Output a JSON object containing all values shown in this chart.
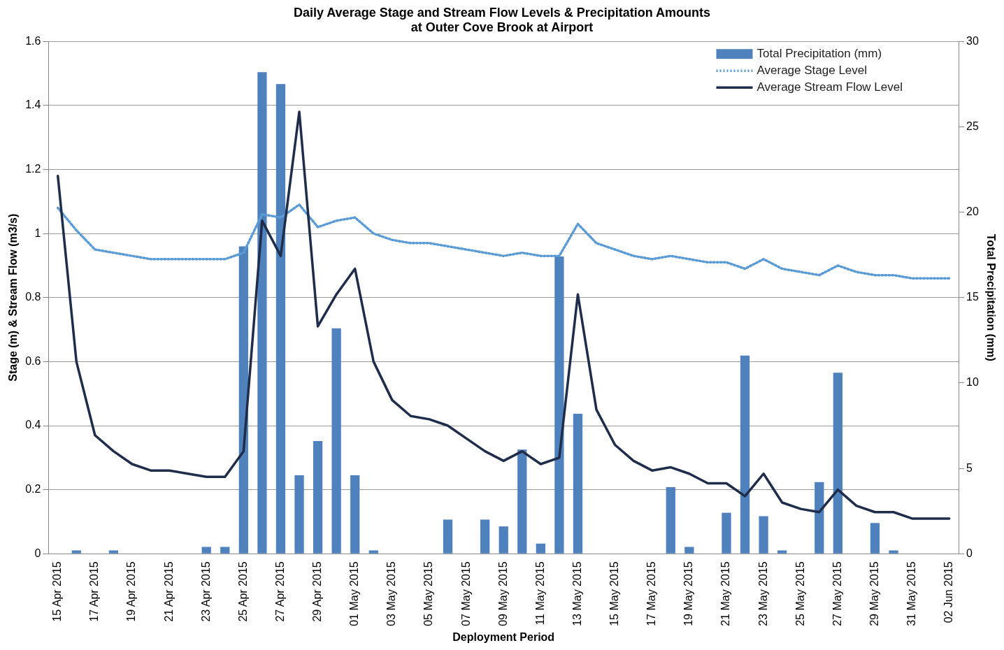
{
  "chart_data": {
    "type": "bar",
    "title": "Daily Average Stage and Stream Flow Levels & Precipitation Amounts\nat Outer Cove Brook at Airport",
    "xlabel": "Deployment Period",
    "ylabel": "Stage (m) & Stream Flow (m3/s)",
    "y2label": "Total Precipitation (mm)",
    "categories": [
      "15 Apr 2015",
      null,
      "17 Apr 2015",
      null,
      "19 Apr 2015",
      null,
      "21 Apr 2015",
      null,
      "23 Apr 2015",
      null,
      "25 Apr 2015",
      null,
      "27 Apr 2015",
      null,
      "29 Apr 2015",
      null,
      "01 May 2015",
      null,
      "03 May 2015",
      null,
      "05 May 2015",
      null,
      "07 May 2015",
      null,
      "09 May 2015",
      null,
      "11 May 2015",
      null,
      "13 May 2015",
      null,
      "15 May 2015",
      null,
      "17 May 2015",
      null,
      "19 May 2015",
      null,
      "21 May 2015",
      null,
      "23 May 2015",
      null,
      "25 May 2015",
      null,
      "27 May 2015",
      null,
      "29 May 2015",
      null,
      "31 May 2015",
      null,
      "02 Jun 2015"
    ],
    "series": [
      {
        "name": "Total Precipitation (mm)",
        "axis": "y2",
        "color": "#4f81bd",
        "values": [
          0,
          0.2,
          0,
          0.2,
          0,
          0,
          0,
          0,
          0.4,
          0.4,
          18.0,
          28.2,
          27.5,
          4.6,
          6.6,
          13.2,
          4.6,
          0.2,
          0,
          0,
          0,
          2.0,
          0,
          2.0,
          1.6,
          6.1,
          0.6,
          17.4,
          8.2,
          0,
          0,
          0,
          0,
          3.9,
          0.4,
          0,
          2.4,
          11.6,
          2.2,
          0.2,
          0,
          4.2,
          10.6,
          0,
          1.8,
          0.2,
          0,
          0,
          0
        ]
      },
      {
        "name": "Average Stage Level",
        "type": "line",
        "line_style": "dotted",
        "color": "#5b9bd5",
        "values": [
          1.08,
          1.01,
          0.95,
          0.94,
          0.93,
          0.92,
          0.92,
          0.92,
          0.92,
          0.92,
          0.94,
          1.06,
          1.05,
          1.09,
          1.02,
          1.04,
          1.05,
          1.0,
          0.98,
          0.97,
          0.97,
          0.96,
          0.95,
          0.94,
          0.93,
          0.94,
          0.93,
          0.93,
          1.03,
          0.97,
          0.95,
          0.93,
          0.92,
          0.93,
          0.92,
          0.91,
          0.91,
          0.89,
          0.92,
          0.89,
          0.88,
          0.87,
          0.9,
          0.88,
          0.87,
          0.87,
          0.86,
          0.86,
          0.86
        ]
      },
      {
        "name": "Average Stream Flow Level",
        "type": "line",
        "line_style": "solid",
        "color": "#1f2d4a",
        "values": [
          1.18,
          0.6,
          0.37,
          0.32,
          0.28,
          0.26,
          0.26,
          0.25,
          0.24,
          0.24,
          0.32,
          1.04,
          0.93,
          1.38,
          0.71,
          0.81,
          0.89,
          0.6,
          0.48,
          0.43,
          0.42,
          0.4,
          0.36,
          0.32,
          0.29,
          0.32,
          0.28,
          0.3,
          0.81,
          0.45,
          0.34,
          0.29,
          0.26,
          0.27,
          0.25,
          0.22,
          0.22,
          0.18,
          0.25,
          0.16,
          0.14,
          0.13,
          0.2,
          0.15,
          0.13,
          0.13,
          0.11,
          0.11,
          0.11
        ]
      }
    ],
    "ylim": [
      0,
      1.6
    ],
    "yticks": [
      0,
      0.2,
      0.4,
      0.6,
      0.8,
      1,
      1.2,
      1.4,
      1.6
    ],
    "y2lim": [
      0,
      30
    ],
    "y2ticks": [
      0,
      5,
      10,
      15,
      20,
      25,
      30
    ],
    "grid": "y",
    "legend": "top right",
    "marker": "none"
  }
}
